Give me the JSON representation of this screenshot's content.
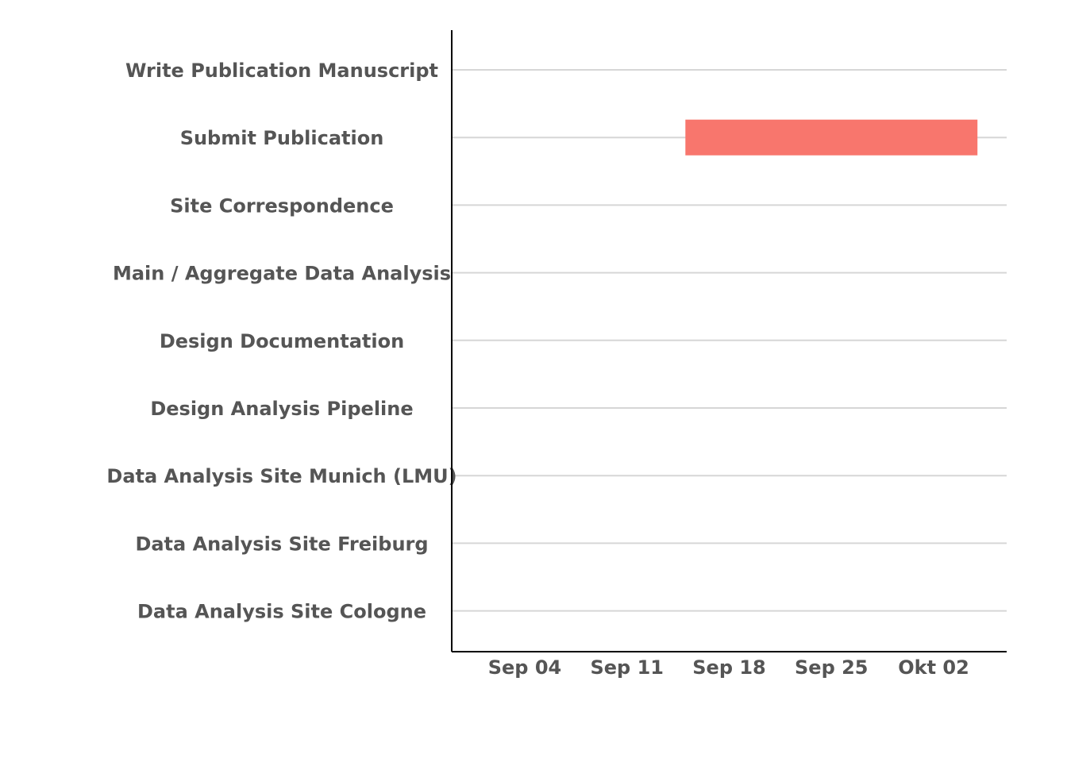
{
  "chart_data": {
    "type": "bar",
    "orientation": "horizontal",
    "style": "gantt",
    "categories": [
      "Write Publication Manuscript",
      "Submit Publication",
      "Site Correspondence",
      "Main / Aggregate Data Analysis",
      "Design Documentation",
      "Design Analysis Pipeline",
      "Data Analysis Site Munich (LMU)",
      "Data Analysis Site Freiburg",
      "Data Analysis Site Cologne"
    ],
    "series": [
      {
        "color": "#f8766d",
        "tasks": [
          {
            "category": "Submit Publication",
            "start": "2023-09-15",
            "end": "2023-10-05"
          }
        ]
      }
    ],
    "x_ticks": [
      {
        "date": "2023-09-04",
        "label": "Sep 04"
      },
      {
        "date": "2023-09-11",
        "label": "Sep 11"
      },
      {
        "date": "2023-09-18",
        "label": "Sep 18"
      },
      {
        "date": "2023-09-25",
        "label": "Sep 25"
      },
      {
        "date": "2023-10-02",
        "label": "Okt 02"
      }
    ],
    "xlim": [
      "2023-08-30",
      "2023-10-07"
    ],
    "title": "",
    "xlabel": "",
    "ylabel": "",
    "grid": "horizontal",
    "legend": "none",
    "colors": {
      "bar": "#f8766d",
      "grid": "#d6d6d6",
      "axis": "#000000",
      "text": "#555555"
    }
  }
}
